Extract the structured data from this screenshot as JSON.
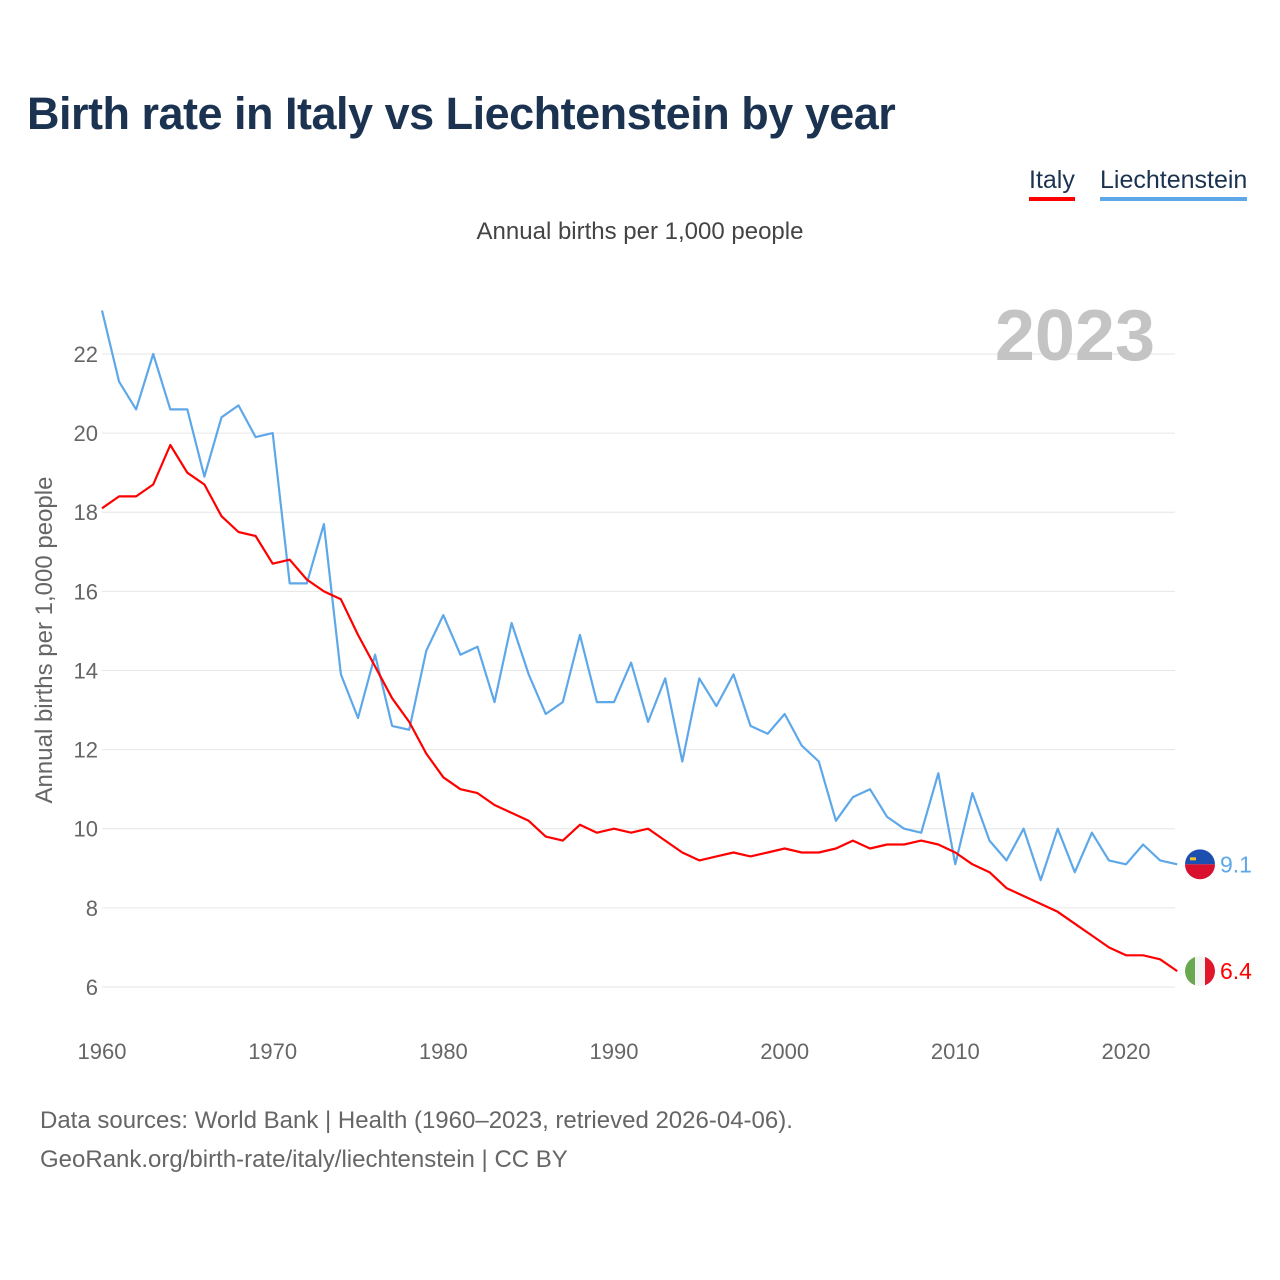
{
  "title": "Birth rate in Italy vs Liechtenstein by year",
  "subtitle": "Annual births per 1,000 people",
  "footer": {
    "line1": "Data sources: World Bank | Health (1960–2023, retrieved 2026-04-06).",
    "line2": "GeoRank.org/birth-rate/italy/liechtenstein | CC BY"
  },
  "chart_data": {
    "type": "line",
    "title": "Birth rate in Italy vs Liechtenstein by year",
    "xlabel": "",
    "ylabel": "Annual births per 1,000 people",
    "xlim": [
      1960,
      2023
    ],
    "ylim": [
      5,
      23.5
    ],
    "xticks": [
      "1960",
      "1970",
      "1980",
      "1990",
      "2000",
      "2010",
      "2020"
    ],
    "yticks": [
      "6",
      "8",
      "10",
      "12",
      "14",
      "16",
      "18",
      "20",
      "22"
    ],
    "grid": true,
    "legend_position": "top-right",
    "year_label": "2023",
    "x_start": 1960,
    "series": [
      {
        "name": "Italy",
        "color": "#ff0000",
        "end_label": "6.4",
        "flag": "italy-flag",
        "values": [
          18.1,
          18.4,
          18.4,
          18.7,
          19.7,
          19.0,
          18.7,
          17.9,
          17.5,
          17.4,
          16.7,
          16.8,
          16.3,
          16.0,
          15.8,
          14.9,
          14.1,
          13.3,
          12.7,
          11.9,
          11.3,
          11.0,
          10.9,
          10.6,
          10.4,
          10.2,
          9.8,
          9.7,
          10.1,
          9.9,
          10.0,
          9.9,
          10.0,
          9.7,
          9.4,
          9.2,
          9.3,
          9.4,
          9.3,
          9.4,
          9.5,
          9.4,
          9.4,
          9.5,
          9.7,
          9.5,
          9.6,
          9.6,
          9.7,
          9.6,
          9.4,
          9.1,
          8.9,
          8.5,
          8.3,
          8.1,
          7.9,
          7.6,
          7.3,
          7.0,
          6.8,
          6.8,
          6.7,
          6.4
        ]
      },
      {
        "name": "Liechtenstein",
        "color": "#5ea8ea",
        "end_label": "9.1",
        "flag": "liechtenstein-flag",
        "values": [
          23.1,
          21.3,
          20.6,
          22.0,
          20.6,
          20.6,
          18.9,
          20.4,
          20.7,
          19.9,
          20.0,
          16.2,
          16.2,
          17.7,
          13.9,
          12.8,
          14.4,
          12.6,
          12.5,
          14.5,
          15.4,
          14.4,
          14.6,
          13.2,
          15.2,
          13.9,
          12.9,
          13.2,
          14.9,
          13.2,
          13.2,
          14.2,
          12.7,
          13.8,
          11.7,
          13.8,
          13.1,
          13.9,
          12.6,
          12.4,
          12.9,
          12.1,
          11.7,
          10.2,
          10.8,
          11.0,
          10.3,
          10.0,
          9.9,
          11.4,
          9.1,
          10.9,
          9.7,
          9.2,
          10.0,
          8.7,
          10.0,
          8.9,
          9.9,
          9.2,
          9.1,
          9.6,
          9.2,
          9.1
        ]
      }
    ]
  }
}
